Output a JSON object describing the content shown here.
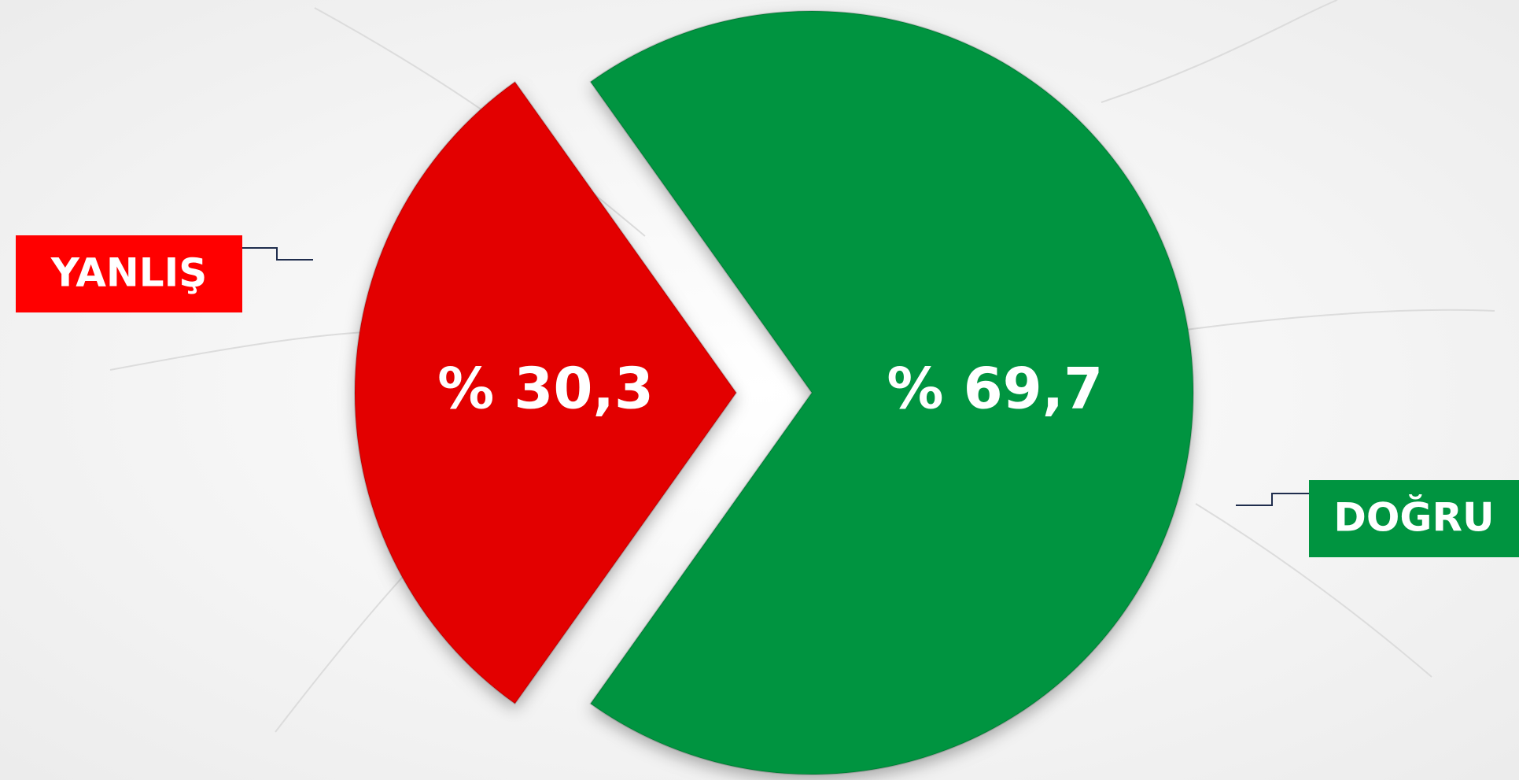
{
  "chart_data": {
    "type": "pie",
    "categories": [
      "YANLIŞ",
      "DOĞRU"
    ],
    "values": [
      30.3,
      69.7
    ],
    "value_labels": [
      "% 30,3",
      "% 69,7"
    ],
    "colors": [
      "#e30000",
      "#009440"
    ]
  }
}
